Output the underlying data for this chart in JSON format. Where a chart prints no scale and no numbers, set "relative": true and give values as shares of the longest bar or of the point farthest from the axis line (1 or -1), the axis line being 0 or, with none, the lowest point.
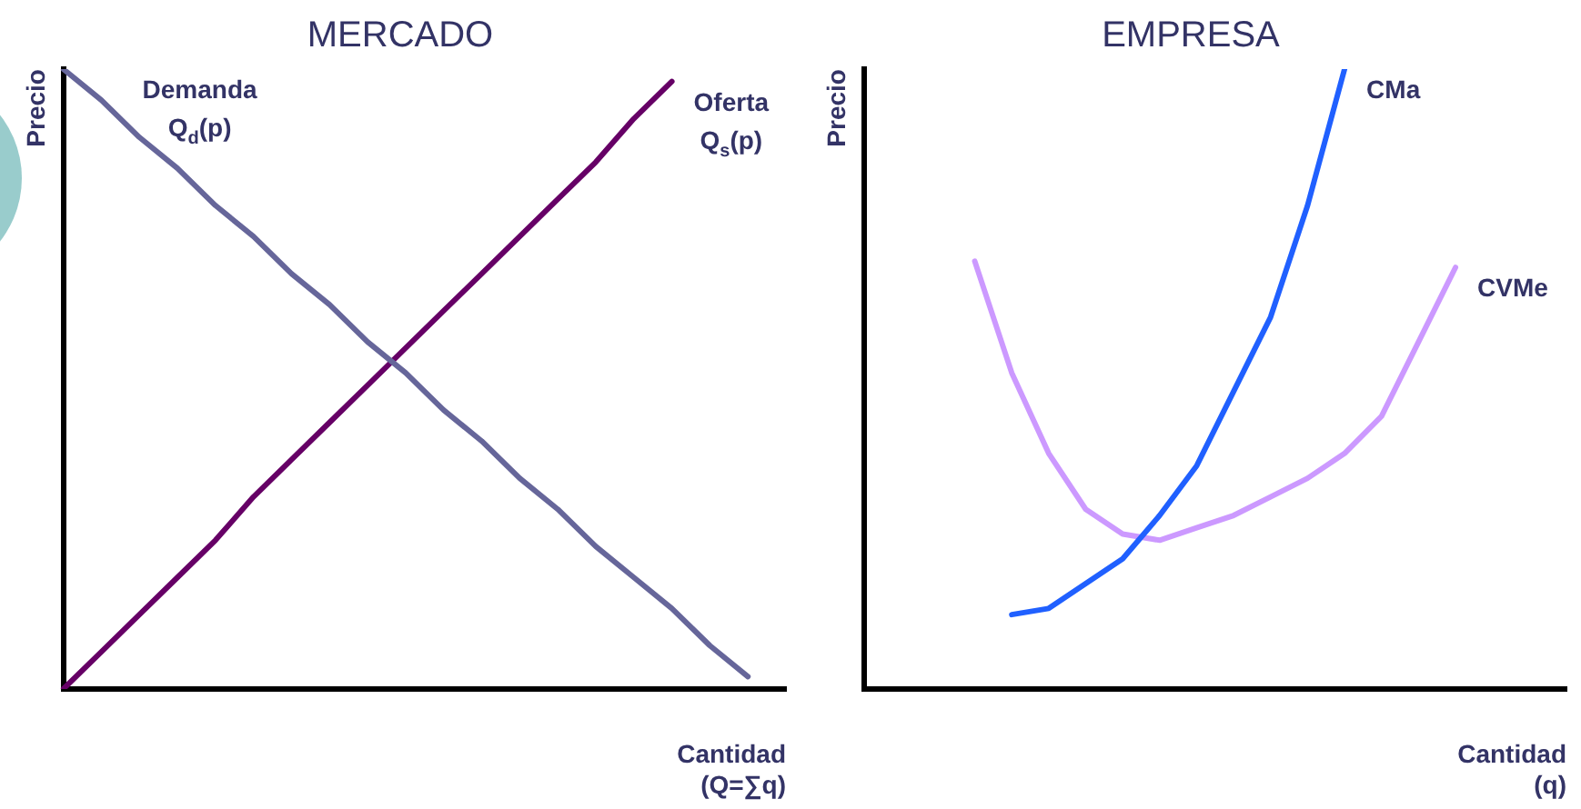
{
  "chart_data": [
    {
      "type": "line",
      "title": "MERCADO",
      "xlabel": "Cantidad (Q=∑q)",
      "ylabel": "Precio",
      "relative": true,
      "legend": false,
      "grid": false,
      "marker": "none",
      "categories": [
        null,
        null,
        null,
        null,
        null,
        null,
        null,
        null,
        null,
        null,
        null,
        null,
        null,
        null,
        null,
        null,
        null,
        null,
        null,
        null
      ],
      "series": [
        {
          "name": "Demanda Q$_{d}$(p)",
          "color": "#66669a",
          "values": [
            1,
            0.95,
            0.89,
            0.84,
            0.78,
            0.73,
            0.67,
            0.62,
            0.56,
            0.51,
            0.45,
            0.4,
            0.34,
            0.29,
            0.23,
            0.18,
            0.13,
            0.07,
            0.02,
            null
          ]
        },
        {
          "name": "Oferta Q$_{s}$(p)",
          "color": "#660066",
          "values": [
            0,
            0.06,
            0.12,
            0.18,
            0.24,
            0.31,
            0.37,
            0.43,
            0.49,
            0.55,
            0.61,
            0.67,
            0.73,
            0.79,
            0.85,
            0.92,
            0.98,
            null,
            null,
            null
          ]
        }
      ]
    },
    {
      "type": "line",
      "title": "EMPRESA",
      "xlabel": "Cantidad (q)",
      "ylabel": "Precio",
      "relative": true,
      "legend": false,
      "grid": false,
      "marker": "none",
      "categories": [
        null,
        null,
        null,
        null,
        null,
        null,
        null,
        null,
        null,
        null,
        null,
        null,
        null,
        null,
        null,
        null,
        null,
        null,
        null,
        null
      ],
      "series": [
        {
          "name": "CMa",
          "color": "#2060ff",
          "values": [
            null,
            null,
            null,
            null,
            0.12,
            0.13,
            0.17,
            0.21,
            0.28,
            0.36,
            0.48,
            0.6,
            0.78,
            1.0,
            null,
            null,
            null,
            null,
            null,
            null
          ]
        },
        {
          "name": "CVMe",
          "color": "#cc99ff",
          "values": [
            null,
            null,
            null,
            0.69,
            0.51,
            0.38,
            0.29,
            0.25,
            0.24,
            0.26,
            0.28,
            0.31,
            0.34,
            0.38,
            0.44,
            0.56,
            0.68,
            null,
            null,
            null
          ]
        }
      ]
    }
  ]
}
